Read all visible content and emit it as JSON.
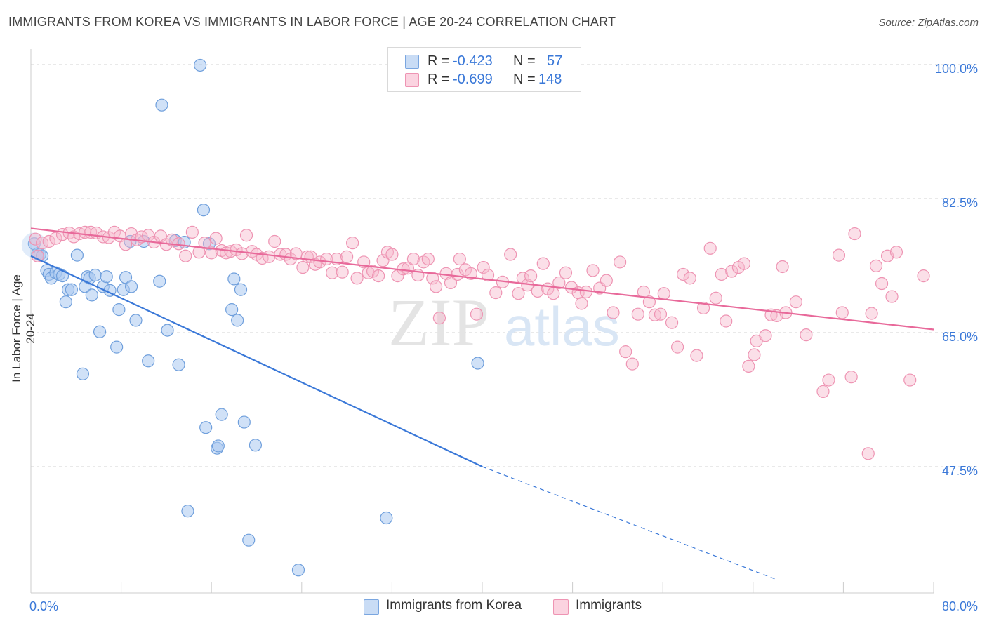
{
  "header": {
    "title": "IMMIGRANTS FROM KOREA VS IMMIGRANTS IN LABOR FORCE | AGE 20-24 CORRELATION CHART",
    "source": "Source: ZipAtlas.com"
  },
  "watermark": {
    "zip": "ZIP",
    "atlas": "atlas"
  },
  "stats_legend": {
    "rows": [
      {
        "r_label": "R =",
        "r_value": "-0.423",
        "n_label": "N =",
        "n_value": "57",
        "color": "#a9c8f0"
      },
      {
        "r_label": "R =",
        "r_value": "-0.699",
        "n_label": "N =",
        "n_value": "148",
        "color": "#f6b8cc"
      }
    ]
  },
  "legend": {
    "items": [
      {
        "label": "Immigrants from Korea",
        "color": "#a9c8f0"
      },
      {
        "label": "Immigrants",
        "color": "#f6b8cc"
      }
    ]
  },
  "chart_data": {
    "type": "scatter",
    "title": "IMMIGRANTS FROM KOREA VS IMMIGRANTS IN LABOR FORCE | AGE 20-24 CORRELATION CHART",
    "xlabel": "",
    "ylabel": "In Labor Force | Age 20-24",
    "xlim": [
      0,
      80
    ],
    "ylim": [
      31,
      102
    ],
    "x_tick_labels": [
      "0.0%",
      "80.0%"
    ],
    "y_ticks": [
      100,
      82.5,
      65,
      47.5
    ],
    "y_tick_labels": [
      "100.0%",
      "82.5%",
      "65.0%",
      "47.5%"
    ],
    "grid": true,
    "legend_position": "bottom-center",
    "colors": {
      "korea": "#3a78d8",
      "korea_fill": "#a9c8f0",
      "immigrants": "#e8699a",
      "immigrants_fill": "#f6b8cc",
      "tick_label": "#3a78d8"
    },
    "series": [
      {
        "name": "Immigrants from Korea",
        "r": -0.423,
        "n": 57,
        "trend": {
          "x_start": 0,
          "y_start": 75.0,
          "x_solid_end": 40.0,
          "y_solid_end": 47.5,
          "x_end": 66.0,
          "y_end": 32.8
        },
        "points": [
          [
            0.3,
            76.6
          ],
          [
            0.6,
            75.3
          ],
          [
            0.8,
            75.2
          ],
          [
            1.0,
            75.0
          ],
          [
            1.4,
            73.1
          ],
          [
            1.6,
            72.6
          ],
          [
            1.8,
            72.1
          ],
          [
            2.2,
            72.8
          ],
          [
            2.5,
            72.6
          ],
          [
            2.8,
            72.4
          ],
          [
            3.1,
            69.0
          ],
          [
            3.3,
            70.6
          ],
          [
            3.6,
            70.6
          ],
          [
            4.1,
            75.1
          ],
          [
            4.6,
            59.6
          ],
          [
            4.8,
            71.0
          ],
          [
            5.0,
            72.3
          ],
          [
            5.2,
            72.1
          ],
          [
            5.4,
            69.9
          ],
          [
            5.7,
            72.5
          ],
          [
            6.1,
            65.1
          ],
          [
            6.4,
            71.0
          ],
          [
            6.7,
            72.3
          ],
          [
            7.0,
            70.5
          ],
          [
            7.6,
            63.1
          ],
          [
            7.8,
            68.0
          ],
          [
            8.2,
            70.6
          ],
          [
            8.4,
            72.2
          ],
          [
            8.8,
            76.9
          ],
          [
            8.9,
            71.0
          ],
          [
            9.3,
            66.6
          ],
          [
            10.0,
            76.9
          ],
          [
            10.4,
            61.3
          ],
          [
            11.4,
            71.7
          ],
          [
            11.6,
            94.7
          ],
          [
            12.1,
            65.3
          ],
          [
            12.8,
            77.0
          ],
          [
            13.1,
            60.8
          ],
          [
            13.6,
            76.8
          ],
          [
            13.9,
            41.7
          ],
          [
            15.0,
            99.9
          ],
          [
            15.3,
            81.0
          ],
          [
            15.5,
            52.6
          ],
          [
            15.8,
            76.6
          ],
          [
            16.5,
            49.9
          ],
          [
            16.6,
            50.2
          ],
          [
            16.9,
            54.3
          ],
          [
            17.8,
            68.0
          ],
          [
            18.0,
            72.0
          ],
          [
            18.3,
            66.6
          ],
          [
            18.6,
            70.6
          ],
          [
            18.9,
            53.3
          ],
          [
            19.3,
            37.9
          ],
          [
            19.9,
            50.3
          ],
          [
            23.7,
            34.0
          ],
          [
            31.5,
            40.8
          ],
          [
            39.6,
            61.0
          ]
        ]
      },
      {
        "name": "Immigrants",
        "r": -0.699,
        "n": 148,
        "trend": {
          "x_start": 0,
          "y_start": 78.6,
          "x_end": 80,
          "y_end": 65.4
        },
        "points": [
          [
            0.4,
            77.2
          ],
          [
            0.6,
            75.0
          ],
          [
            1.0,
            76.7
          ],
          [
            1.6,
            76.9
          ],
          [
            2.2,
            77.3
          ],
          [
            2.8,
            77.8
          ],
          [
            3.4,
            78.0
          ],
          [
            3.8,
            77.5
          ],
          [
            4.3,
            77.9
          ],
          [
            4.8,
            78.1
          ],
          [
            5.3,
            78.1
          ],
          [
            5.8,
            78.0
          ],
          [
            6.4,
            77.5
          ],
          [
            6.9,
            77.4
          ],
          [
            7.4,
            78.1
          ],
          [
            7.9,
            77.6
          ],
          [
            8.4,
            76.5
          ],
          [
            8.9,
            77.9
          ],
          [
            9.4,
            77.1
          ],
          [
            9.8,
            77.5
          ],
          [
            10.4,
            77.7
          ],
          [
            10.9,
            76.8
          ],
          [
            11.5,
            77.6
          ],
          [
            12.0,
            76.5
          ],
          [
            12.5,
            77.1
          ],
          [
            13.1,
            76.6
          ],
          [
            13.7,
            75.0
          ],
          [
            14.3,
            78.1
          ],
          [
            14.9,
            75.5
          ],
          [
            15.4,
            76.7
          ],
          [
            16.0,
            75.4
          ],
          [
            16.4,
            77.3
          ],
          [
            16.9,
            75.7
          ],
          [
            17.3,
            75.4
          ],
          [
            17.7,
            75.6
          ],
          [
            18.2,
            75.8
          ],
          [
            18.7,
            75.3
          ],
          [
            19.1,
            77.7
          ],
          [
            19.6,
            75.6
          ],
          [
            20.0,
            75.2
          ],
          [
            20.5,
            74.7
          ],
          [
            21.1,
            74.9
          ],
          [
            21.6,
            76.9
          ],
          [
            22.1,
            75.2
          ],
          [
            22.6,
            75.2
          ],
          [
            23.0,
            74.6
          ],
          [
            23.5,
            75.3
          ],
          [
            24.1,
            73.5
          ],
          [
            24.5,
            74.9
          ],
          [
            24.8,
            74.9
          ],
          [
            25.2,
            73.9
          ],
          [
            25.6,
            74.2
          ],
          [
            26.2,
            74.6
          ],
          [
            26.7,
            72.8
          ],
          [
            27.1,
            74.6
          ],
          [
            27.6,
            72.9
          ],
          [
            28.0,
            74.9
          ],
          [
            28.5,
            76.7
          ],
          [
            28.9,
            72.1
          ],
          [
            29.5,
            74.2
          ],
          [
            29.9,
            72.8
          ],
          [
            30.3,
            73.0
          ],
          [
            30.8,
            72.4
          ],
          [
            31.2,
            74.4
          ],
          [
            31.6,
            75.5
          ],
          [
            32.0,
            75.2
          ],
          [
            32.5,
            72.4
          ],
          [
            33.0,
            73.3
          ],
          [
            33.4,
            73.4
          ],
          [
            33.9,
            74.6
          ],
          [
            34.3,
            72.5
          ],
          [
            34.8,
            74.2
          ],
          [
            35.2,
            74.6
          ],
          [
            35.6,
            72.1
          ],
          [
            35.9,
            71.0
          ],
          [
            36.2,
            66.9
          ],
          [
            36.8,
            72.7
          ],
          [
            37.2,
            71.5
          ],
          [
            37.8,
            72.6
          ],
          [
            38.0,
            74.6
          ],
          [
            38.5,
            73.2
          ],
          [
            39.0,
            72.7
          ],
          [
            39.5,
            67.4
          ],
          [
            40.1,
            73.5
          ],
          [
            40.5,
            72.5
          ],
          [
            41.2,
            70.2
          ],
          [
            41.8,
            71.6
          ],
          [
            42.5,
            75.2
          ],
          [
            43.2,
            70.1
          ],
          [
            43.6,
            72.1
          ],
          [
            44.0,
            71.2
          ],
          [
            44.3,
            72.4
          ],
          [
            44.9,
            70.4
          ],
          [
            45.4,
            74.0
          ],
          [
            45.8,
            70.7
          ],
          [
            46.3,
            70.1
          ],
          [
            46.8,
            71.5
          ],
          [
            47.4,
            72.8
          ],
          [
            47.9,
            70.9
          ],
          [
            48.5,
            70.2
          ],
          [
            48.8,
            68.8
          ],
          [
            49.2,
            70.3
          ],
          [
            49.8,
            73.1
          ],
          [
            50.4,
            70.8
          ],
          [
            51.0,
            71.8
          ],
          [
            51.6,
            67.6
          ],
          [
            52.2,
            74.2
          ],
          [
            52.7,
            62.5
          ],
          [
            53.3,
            60.9
          ],
          [
            53.8,
            67.4
          ],
          [
            54.3,
            70.3
          ],
          [
            54.8,
            69.0
          ],
          [
            55.3,
            67.3
          ],
          [
            55.8,
            67.4
          ],
          [
            56.1,
            70.1
          ],
          [
            56.8,
            66.3
          ],
          [
            57.3,
            63.1
          ],
          [
            57.8,
            72.6
          ],
          [
            58.4,
            72.1
          ],
          [
            59.0,
            62.0
          ],
          [
            59.6,
            68.2
          ],
          [
            60.2,
            76.0
          ],
          [
            60.7,
            69.5
          ],
          [
            61.2,
            72.6
          ],
          [
            61.6,
            66.5
          ],
          [
            62.1,
            73.0
          ],
          [
            62.7,
            73.5
          ],
          [
            63.2,
            74.0
          ],
          [
            63.6,
            60.6
          ],
          [
            64.1,
            62.1
          ],
          [
            64.3,
            63.9
          ],
          [
            65.1,
            64.6
          ],
          [
            65.6,
            67.3
          ],
          [
            66.1,
            67.2
          ],
          [
            66.6,
            73.6
          ],
          [
            66.9,
            67.6
          ],
          [
            67.8,
            69.0
          ],
          [
            68.7,
            64.7
          ],
          [
            70.2,
            57.3
          ],
          [
            70.7,
            58.8
          ],
          [
            71.6,
            75.1
          ],
          [
            71.9,
            67.6
          ],
          [
            72.7,
            59.2
          ],
          [
            73.0,
            77.9
          ],
          [
            74.2,
            49.2
          ],
          [
            74.5,
            67.5
          ],
          [
            74.9,
            73.7
          ],
          [
            75.4,
            71.4
          ],
          [
            75.9,
            75.0
          ],
          [
            76.3,
            69.7
          ],
          [
            76.7,
            75.5
          ],
          [
            79.1,
            72.4
          ],
          [
            77.9,
            58.8
          ]
        ]
      }
    ]
  }
}
